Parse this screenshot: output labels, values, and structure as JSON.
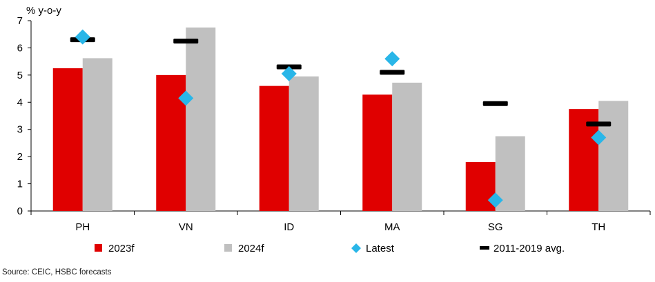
{
  "chart_data": {
    "type": "bar",
    "ylabel": "% y-o-y",
    "ylim": [
      0,
      7
    ],
    "yticks": [
      0,
      1,
      2,
      3,
      4,
      5,
      6,
      7
    ],
    "categories": [
      "PH",
      "VN",
      "ID",
      "MA",
      "SG",
      "TH"
    ],
    "series": [
      {
        "name": "2023f",
        "kind": "bar",
        "color": "#e00000",
        "values": [
          5.25,
          5.0,
          4.6,
          4.28,
          1.8,
          3.75
        ]
      },
      {
        "name": "2024f",
        "kind": "bar",
        "color": "#c0c0c0",
        "values": [
          5.62,
          6.75,
          4.95,
          4.72,
          2.75,
          4.05
        ]
      },
      {
        "name": "Latest",
        "kind": "marker-diamond",
        "color": "#29b6e8",
        "values": [
          6.4,
          4.15,
          5.05,
          5.6,
          0.4,
          2.7
        ]
      },
      {
        "name": "2011-2019 avg.",
        "kind": "marker-dash",
        "color": "#000000",
        "values": [
          6.3,
          6.25,
          5.3,
          5.1,
          3.95,
          3.2
        ]
      }
    ],
    "grid": false,
    "legend": "bottom"
  },
  "source": "Source: CEIC, HSBC forecasts"
}
